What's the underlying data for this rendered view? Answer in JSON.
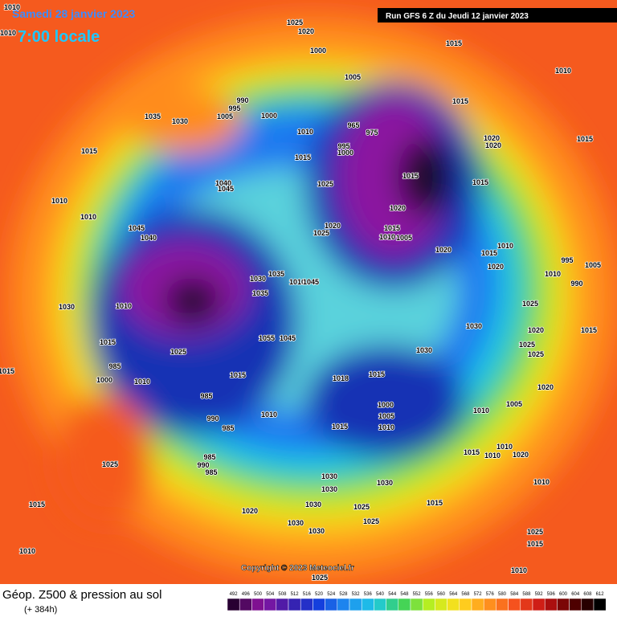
{
  "header": {
    "date": "Samedi 28 janvier 2023",
    "time": "7:00 locale",
    "run": "Run GFS 6 Z du Jeudi 12 janvier 2023"
  },
  "copyright": "Copyright © 2023 Meteociel.fr",
  "footer": {
    "caption": "Géop. Z500 & pression au sol",
    "lead": "(+ 384h)"
  },
  "legend": {
    "levels": [
      492,
      496,
      500,
      504,
      508,
      512,
      516,
      520,
      524,
      528,
      532,
      536,
      540,
      544,
      548,
      552,
      556,
      560,
      564,
      568,
      572,
      576,
      580,
      584,
      588,
      592,
      596,
      600,
      604,
      608,
      612
    ]
  },
  "map": {
    "pressure_labels": [
      1010,
      1010,
      1025,
      1020,
      1000,
      1005,
      1015,
      1010,
      1015,
      990,
      995,
      1005,
      1000,
      1035,
      1030,
      965,
      975,
      1010,
      995,
      1000,
      1020,
      1020,
      1015,
      1015,
      1015,
      1015,
      1025,
      1015,
      1040,
      1045,
      1010,
      1020,
      1010,
      1045,
      1020,
      1025,
      1015,
      1010,
      1005,
      1040,
      1020,
      1010,
      1015,
      995,
      1005,
      1020,
      1010,
      990,
      1035,
      1030,
      1010,
      1045,
      1035,
      1010,
      1030,
      1025,
      1030,
      1020,
      1015,
      1055,
      1045,
      1015,
      1025,
      1030,
      1025,
      1025,
      985,
      1015,
      1018,
      1015,
      1000,
      1010,
      1020,
      985,
      1000,
      1005,
      1005,
      1010,
      990,
      1010,
      985,
      1015,
      1010,
      1010,
      1010,
      1015,
      1020,
      985,
      990,
      985,
      1025,
      1030,
      1030,
      1030,
      1010,
      1015,
      1020,
      1030,
      1025,
      1015,
      1030,
      1025,
      1030,
      1025,
      1015,
      1010,
      1010,
      1025,
      1015
    ]
  }
}
